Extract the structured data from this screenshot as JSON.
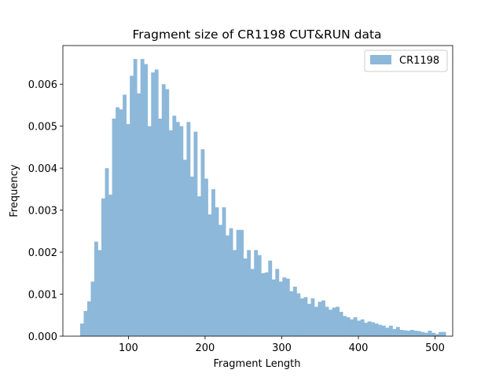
{
  "chart_data": {
    "type": "bar",
    "title": "Fragment size of CR1198 CUT&RUN data",
    "xlabel": "Fragment Length",
    "ylabel": "Frequency",
    "xlim": [
      14.5,
      523
    ],
    "ylim": [
      0,
      0.00692
    ],
    "x_ticks": [
      100,
      200,
      300,
      400,
      500
    ],
    "y_ticks": [
      0.0,
      0.001,
      0.002,
      0.003,
      0.004,
      0.005,
      0.006
    ],
    "y_tick_decimals": 3,
    "legend_position": "top-right",
    "grid": false,
    "series": [
      {
        "name": "CR1198",
        "color": "#8db8d9",
        "bin_start": 37,
        "bin_width": 4.63,
        "values": [
          0.0003,
          0.0006,
          0.00083,
          0.0013,
          0.00225,
          0.00205,
          0.00328,
          0.004,
          0.00337,
          0.00518,
          0.00545,
          0.0054,
          0.00575,
          0.00505,
          0.0062,
          0.0066,
          0.00578,
          0.0066,
          0.00648,
          0.005,
          0.00628,
          0.00635,
          0.00518,
          0.006,
          0.00588,
          0.0049,
          0.00525,
          0.0051,
          0.005,
          0.0042,
          0.0051,
          0.0038,
          0.00487,
          0.00333,
          0.00445,
          0.00375,
          0.0029,
          0.0035,
          0.00307,
          0.00265,
          0.00307,
          0.0024,
          0.00257,
          0.00205,
          0.00253,
          0.00253,
          0.00185,
          0.00205,
          0.0016,
          0.00205,
          0.00193,
          0.0015,
          0.00152,
          0.0018,
          0.00135,
          0.0016,
          0.0013,
          0.0014,
          0.00137,
          0.00107,
          0.00118,
          0.00102,
          0.0009,
          0.00093,
          0.00077,
          0.0009,
          0.0007,
          0.00082,
          0.00085,
          0.0007,
          0.00063,
          0.00068,
          0.0007,
          0.00058,
          0.00048,
          0.00045,
          0.0004,
          0.00045,
          0.00037,
          0.0004,
          0.00032,
          0.00035,
          0.00033,
          0.0003,
          0.00027,
          0.00025,
          0.0002,
          0.00025,
          0.00017,
          0.00022,
          0.00015,
          0.00014,
          0.00013,
          0.00015,
          0.00013,
          0.00012,
          0.0001,
          8e-05,
          0.00013,
          8e-05,
          5e-05,
          0.0001,
          0.0001
        ]
      }
    ]
  }
}
